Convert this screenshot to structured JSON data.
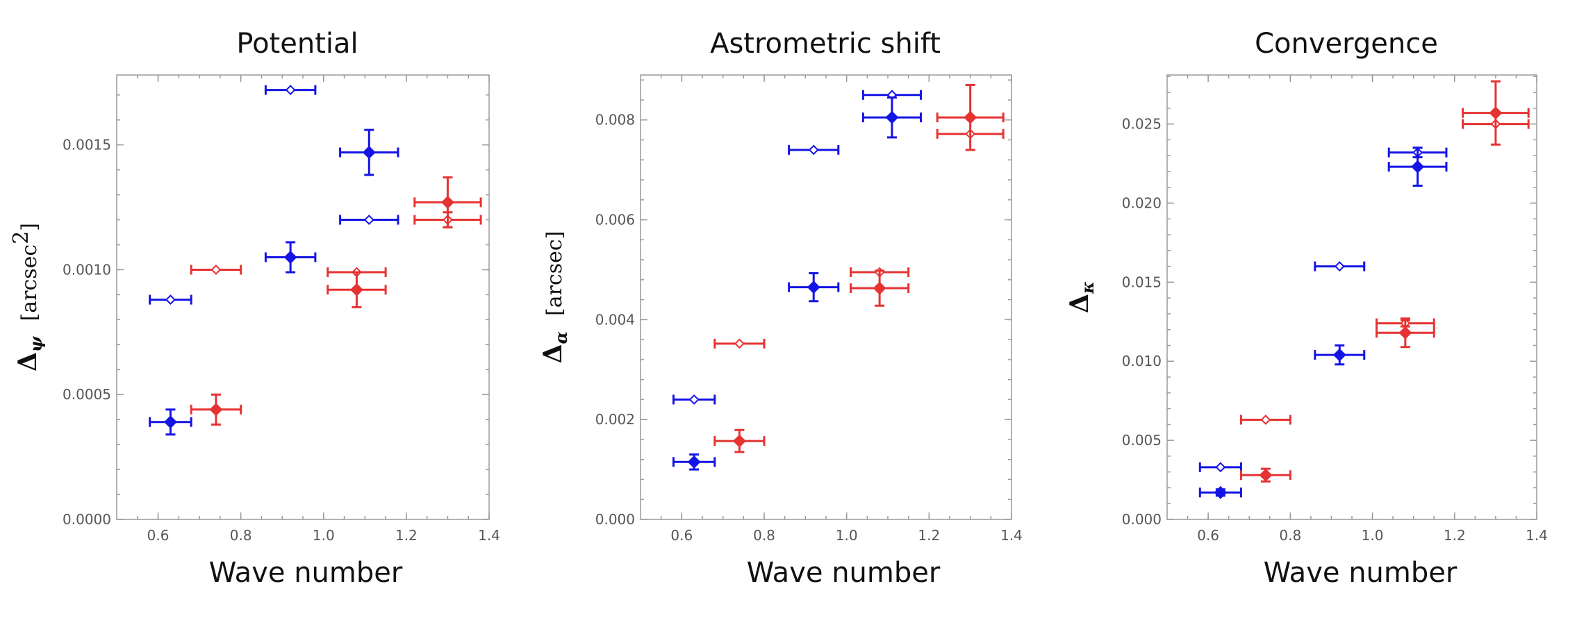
{
  "colors": {
    "blue": "#1414e6",
    "red": "#e63232",
    "axis": "#9a9a9a",
    "ticks_text": "#555555"
  },
  "chart_data": [
    {
      "type": "scatter",
      "title": "Potential",
      "xlabel": "Wave number",
      "ylabel": {
        "symbol": "Δ",
        "subscript": "ψ",
        "unit": "[arcsec",
        "unit_sup": "2",
        "unit_close": "]"
      },
      "xlim": [
        0.5,
        1.4
      ],
      "ylim": [
        0,
        0.00178
      ],
      "xticks": [
        0.6,
        0.8,
        1.0,
        1.2,
        1.4
      ],
      "xtick_labels": [
        "0.6",
        "0.8",
        "1.0",
        "1.2",
        "1.4"
      ],
      "yticks": [
        0,
        0.0005,
        0.001,
        0.0015
      ],
      "ytick_labels": [
        "0.0000",
        "0.0005",
        "0.0010",
        "0.0015"
      ],
      "series": [
        {
          "color": "blue",
          "marker": "open-diamond",
          "points": [
            {
              "x": 0.63,
              "y": 0.00088,
              "xerr": 0.05,
              "yerr": 0
            },
            {
              "x": 0.92,
              "y": 0.00172,
              "xerr": 0.06,
              "yerr": 0
            },
            {
              "x": 1.11,
              "y": 0.0012,
              "xerr": 0.07,
              "yerr": 0
            }
          ]
        },
        {
          "color": "blue",
          "marker": "filled-diamond",
          "points": [
            {
              "x": 0.63,
              "y": 0.00039,
              "xerr": 0.05,
              "yerr": 5e-05
            },
            {
              "x": 0.92,
              "y": 0.00105,
              "xerr": 0.06,
              "yerr": 6e-05
            },
            {
              "x": 1.11,
              "y": 0.00147,
              "xerr": 0.07,
              "yerr": 9e-05
            }
          ]
        },
        {
          "color": "red",
          "marker": "open-diamond",
          "points": [
            {
              "x": 0.74,
              "y": 0.001,
              "xerr": 0.06,
              "yerr": 0
            },
            {
              "x": 1.08,
              "y": 0.00099,
              "xerr": 0.07,
              "yerr": 0
            },
            {
              "x": 1.3,
              "y": 0.0012,
              "xerr": 0.08,
              "yerr": 3e-05
            }
          ]
        },
        {
          "color": "red",
          "marker": "filled-diamond",
          "points": [
            {
              "x": 0.74,
              "y": 0.00044,
              "xerr": 0.06,
              "yerr": 6e-05
            },
            {
              "x": 1.08,
              "y": 0.00092,
              "xerr": 0.07,
              "yerr": 7e-05
            },
            {
              "x": 1.3,
              "y": 0.00127,
              "xerr": 0.08,
              "yerr": 0.0001
            }
          ]
        }
      ]
    },
    {
      "type": "scatter",
      "title": "Astrometric shift",
      "xlabel": "Wave number",
      "ylabel": {
        "symbol": "Δ",
        "subscript": "α",
        "unit": "[arcsec]",
        "unit_sup": "",
        "unit_close": ""
      },
      "xlim": [
        0.5,
        1.4
      ],
      "ylim": [
        0,
        0.0089
      ],
      "xticks": [
        0.6,
        0.8,
        1.0,
        1.2,
        1.4
      ],
      "xtick_labels": [
        "0.6",
        "0.8",
        "1.0",
        "1.2",
        "1.4"
      ],
      "yticks": [
        0,
        0.002,
        0.004,
        0.006,
        0.008
      ],
      "ytick_labels": [
        "0.000",
        "0.002",
        "0.004",
        "0.006",
        "0.008"
      ],
      "series": [
        {
          "color": "blue",
          "marker": "open-diamond",
          "points": [
            {
              "x": 0.63,
              "y": 0.0024,
              "xerr": 0.05,
              "yerr": 0
            },
            {
              "x": 0.92,
              "y": 0.0074,
              "xerr": 0.06,
              "yerr": 0
            },
            {
              "x": 1.11,
              "y": 0.0085,
              "xerr": 0.07,
              "yerr": 0
            }
          ]
        },
        {
          "color": "blue",
          "marker": "filled-diamond",
          "points": [
            {
              "x": 0.63,
              "y": 0.00115,
              "xerr": 0.05,
              "yerr": 0.00015
            },
            {
              "x": 0.92,
              "y": 0.00465,
              "xerr": 0.06,
              "yerr": 0.00028
            },
            {
              "x": 1.11,
              "y": 0.00805,
              "xerr": 0.07,
              "yerr": 0.0004
            }
          ]
        },
        {
          "color": "red",
          "marker": "open-diamond",
          "points": [
            {
              "x": 0.74,
              "y": 0.00352,
              "xerr": 0.06,
              "yerr": 0
            },
            {
              "x": 1.08,
              "y": 0.00495,
              "xerr": 0.07,
              "yerr": 0
            },
            {
              "x": 1.3,
              "y": 0.00772,
              "xerr": 0.08,
              "yerr": 0
            }
          ]
        },
        {
          "color": "red",
          "marker": "filled-diamond",
          "points": [
            {
              "x": 0.74,
              "y": 0.00157,
              "xerr": 0.06,
              "yerr": 0.00022
            },
            {
              "x": 1.08,
              "y": 0.00463,
              "xerr": 0.07,
              "yerr": 0.00035
            },
            {
              "x": 1.3,
              "y": 0.00805,
              "xerr": 0.08,
              "yerr": 0.00065
            }
          ]
        }
      ]
    },
    {
      "type": "scatter",
      "title": "Convergence",
      "xlabel": "Wave number",
      "ylabel": {
        "symbol": "Δ",
        "subscript": "κ",
        "unit": "",
        "unit_sup": "",
        "unit_close": ""
      },
      "xlim": [
        0.5,
        1.4
      ],
      "ylim": [
        0,
        0.0281
      ],
      "xticks": [
        0.6,
        0.8,
        1.0,
        1.2,
        1.4
      ],
      "xtick_labels": [
        "0.6",
        "0.8",
        "1.0",
        "1.2",
        "1.4"
      ],
      "yticks": [
        0,
        0.005,
        0.01,
        0.015,
        0.02,
        0.025
      ],
      "ytick_labels": [
        "0.000",
        "0.005",
        "0.010",
        "0.015",
        "0.020",
        "0.025"
      ],
      "series": [
        {
          "color": "blue",
          "marker": "open-diamond",
          "points": [
            {
              "x": 0.63,
              "y": 0.0033,
              "xerr": 0.05,
              "yerr": 0
            },
            {
              "x": 0.92,
              "y": 0.016,
              "xerr": 0.06,
              "yerr": 0
            },
            {
              "x": 1.11,
              "y": 0.0232,
              "xerr": 0.07,
              "yerr": 0.0003
            }
          ]
        },
        {
          "color": "blue",
          "marker": "filled-diamond",
          "points": [
            {
              "x": 0.63,
              "y": 0.0017,
              "xerr": 0.05,
              "yerr": 0.0002
            },
            {
              "x": 0.92,
              "y": 0.0104,
              "xerr": 0.06,
              "yerr": 0.0006
            },
            {
              "x": 1.11,
              "y": 0.0223,
              "xerr": 0.07,
              "yerr": 0.0012
            }
          ]
        },
        {
          "color": "red",
          "marker": "open-diamond",
          "points": [
            {
              "x": 0.74,
              "y": 0.0063,
              "xerr": 0.06,
              "yerr": 0
            },
            {
              "x": 1.08,
              "y": 0.0124,
              "xerr": 0.07,
              "yerr": 0.0002
            },
            {
              "x": 1.3,
              "y": 0.025,
              "xerr": 0.08,
              "yerr": 0
            }
          ]
        },
        {
          "color": "red",
          "marker": "filled-diamond",
          "points": [
            {
              "x": 0.74,
              "y": 0.0028,
              "xerr": 0.06,
              "yerr": 0.0004
            },
            {
              "x": 1.08,
              "y": 0.0118,
              "xerr": 0.07,
              "yerr": 0.0009
            },
            {
              "x": 1.3,
              "y": 0.0257,
              "xerr": 0.08,
              "yerr": 0.002
            }
          ]
        }
      ]
    }
  ]
}
